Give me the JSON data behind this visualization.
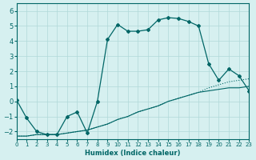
{
  "xlabel": "Humidex (Indice chaleur)",
  "bg_color": "#d6f0f0",
  "line_color": "#006666",
  "grid_color": "#b0d8d8",
  "xlim": [
    0,
    23
  ],
  "ylim": [
    -2.5,
    6.5
  ],
  "xticks": [
    0,
    1,
    2,
    3,
    4,
    5,
    6,
    7,
    8,
    9,
    10,
    11,
    12,
    13,
    14,
    15,
    16,
    17,
    18,
    19,
    20,
    21,
    22,
    23
  ],
  "yticks": [
    -2,
    -1,
    0,
    1,
    2,
    3,
    4,
    5,
    6
  ],
  "line1_x": [
    0,
    1,
    2,
    3,
    4,
    5,
    6,
    7,
    8,
    9,
    10,
    11,
    12,
    13,
    14,
    15,
    16,
    17,
    18,
    19,
    20,
    21,
    22,
    23
  ],
  "line1_y": [
    0.1,
    -1.1,
    -2.0,
    -2.2,
    -2.2,
    -1.0,
    -0.7,
    -2.1,
    0.0,
    4.1,
    5.1,
    4.65,
    4.65,
    4.75,
    5.4,
    5.55,
    5.5,
    5.3,
    5.0,
    2.5,
    1.4,
    2.15,
    1.7,
    0.7
  ],
  "line2_x": [
    0,
    1,
    2,
    3,
    4,
    5,
    6,
    7,
    8,
    9,
    10,
    11,
    12,
    13,
    14,
    15,
    16,
    17,
    18,
    19,
    20,
    21,
    22,
    23
  ],
  "line2_y": [
    -2.3,
    -2.3,
    -2.2,
    -2.2,
    -2.2,
    -2.1,
    -2.0,
    -1.9,
    -1.7,
    -1.5,
    -1.2,
    -1.0,
    -0.7,
    -0.5,
    -0.3,
    0.0,
    0.2,
    0.4,
    0.6,
    0.7,
    0.8,
    0.9,
    0.9,
    1.0
  ],
  "line3_x": [
    0,
    1,
    2,
    3,
    4,
    5,
    6,
    7,
    8,
    9,
    10,
    11,
    12,
    13,
    14,
    15,
    16,
    17,
    18,
    19,
    20,
    21,
    22,
    23
  ],
  "line3_y": [
    -2.3,
    -2.3,
    -2.2,
    -2.2,
    -2.2,
    -2.1,
    -2.0,
    -1.9,
    -1.7,
    -1.5,
    -1.2,
    -1.0,
    -0.7,
    -0.5,
    -0.3,
    0.0,
    0.2,
    0.4,
    0.6,
    0.9,
    1.1,
    1.3,
    1.4,
    1.5
  ]
}
